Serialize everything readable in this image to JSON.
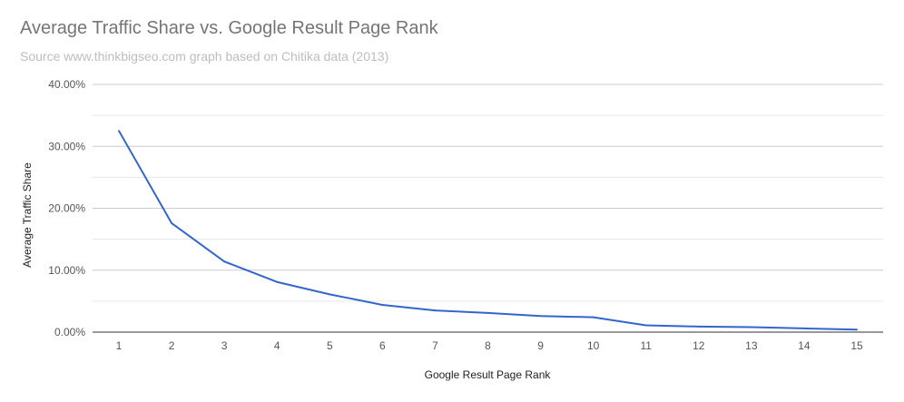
{
  "chart_data": {
    "type": "line",
    "title": "Average Traffic Share vs. Google Result Page Rank",
    "subtitle": "Source www.thinkbigseo.com graph based on Chitika data (2013)",
    "xlabel": "Google Result Page Rank",
    "ylabel": "Average Traffic Share",
    "categories": [
      "1",
      "2",
      "3",
      "4",
      "5",
      "6",
      "7",
      "8",
      "9",
      "10",
      "11",
      "12",
      "13",
      "14",
      "15"
    ],
    "series": [
      {
        "values": [
          32.5,
          17.6,
          11.4,
          8.1,
          6.1,
          4.4,
          3.5,
          3.1,
          2.6,
          2.4,
          1.1,
          0.9,
          0.8,
          0.6,
          0.4
        ]
      }
    ],
    "ylim": [
      0,
      40
    ],
    "yticks": [
      "0.00%",
      "10.00%",
      "20.00%",
      "30.00%",
      "40.00%"
    ],
    "grid": true,
    "line_color": "#3366cc",
    "grid_color": "#cccccc"
  }
}
